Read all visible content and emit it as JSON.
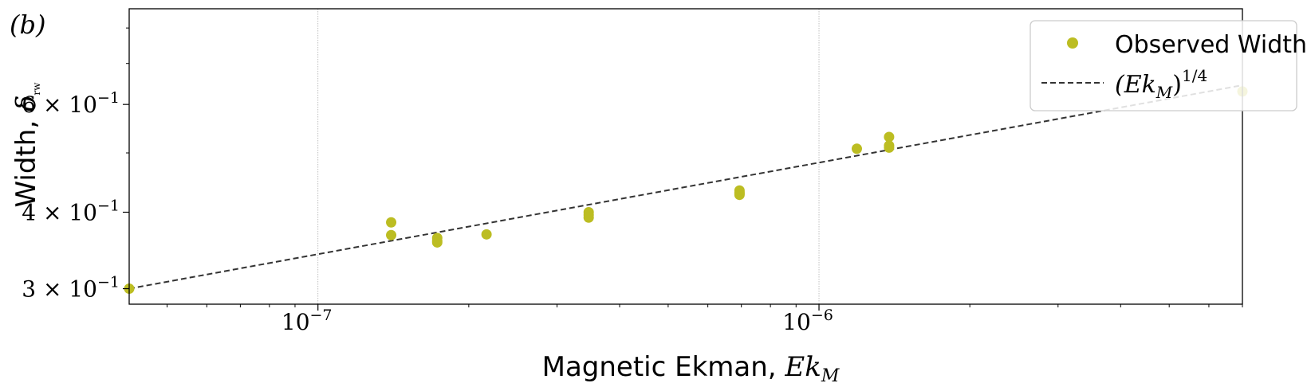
{
  "chart_data": {
    "type": "scatter",
    "panel_label": "(b)",
    "xlabel": "Magnetic Ekman, ",
    "xlabel_math": "Ek",
    "xlabel_math_sub": "M",
    "ylabel": "Width, ",
    "ylabel_math": "δ",
    "ylabel_math_sub": "rw",
    "xscale": "log",
    "yscale": "log",
    "xlim": [
      4.2e-08,
      7e-06
    ],
    "ylim": [
      0.283,
      0.86
    ],
    "grid": "major x only",
    "legend_position": "top-right",
    "x_ticks": [
      {
        "value": 1e-07,
        "base": "10",
        "exp": "−7"
      },
      {
        "value": 1e-06,
        "base": "10",
        "exp": "−6"
      }
    ],
    "y_ticks": [
      {
        "value": 0.3,
        "mantissa": "3",
        "times": "×",
        "base": "10",
        "exp": "−1"
      },
      {
        "value": 0.4,
        "mantissa": "4",
        "times": "×",
        "base": "10",
        "exp": "−1"
      },
      {
        "value": 0.6,
        "mantissa": "6",
        "times": "×",
        "base": "10",
        "exp": "−1"
      }
    ],
    "series": [
      {
        "name": "Observed Width",
        "kind": "points",
        "color": "#bcbd22",
        "x": [
          4.2e-08,
          1.4e-07,
          1.4e-07,
          1.73e-07,
          1.73e-07,
          1.73e-07,
          2.17e-07,
          3.47e-07,
          3.47e-07,
          3.47e-07,
          6.94e-07,
          6.94e-07,
          6.94e-07,
          6.94e-07,
          1.19e-06,
          1.38e-06,
          1.38e-06,
          1.38e-06,
          7e-06
        ],
        "y": [
          0.3,
          0.385,
          0.367,
          0.363,
          0.359,
          0.357,
          0.368,
          0.4,
          0.396,
          0.392,
          0.434,
          0.431,
          0.429,
          0.427,
          0.508,
          0.531,
          0.514,
          0.51,
          0.63
        ]
      },
      {
        "name": "(Ek_M)^1/4",
        "legend_math": "(Ek",
        "legend_math_sub": "M",
        "legend_math_close": ")",
        "legend_math_sup": "1/4",
        "kind": "line",
        "style": "dashed",
        "color": "#333333",
        "x": [
          4.2e-08,
          7e-06
        ],
        "y": [
          0.3,
          0.645
        ]
      }
    ]
  }
}
